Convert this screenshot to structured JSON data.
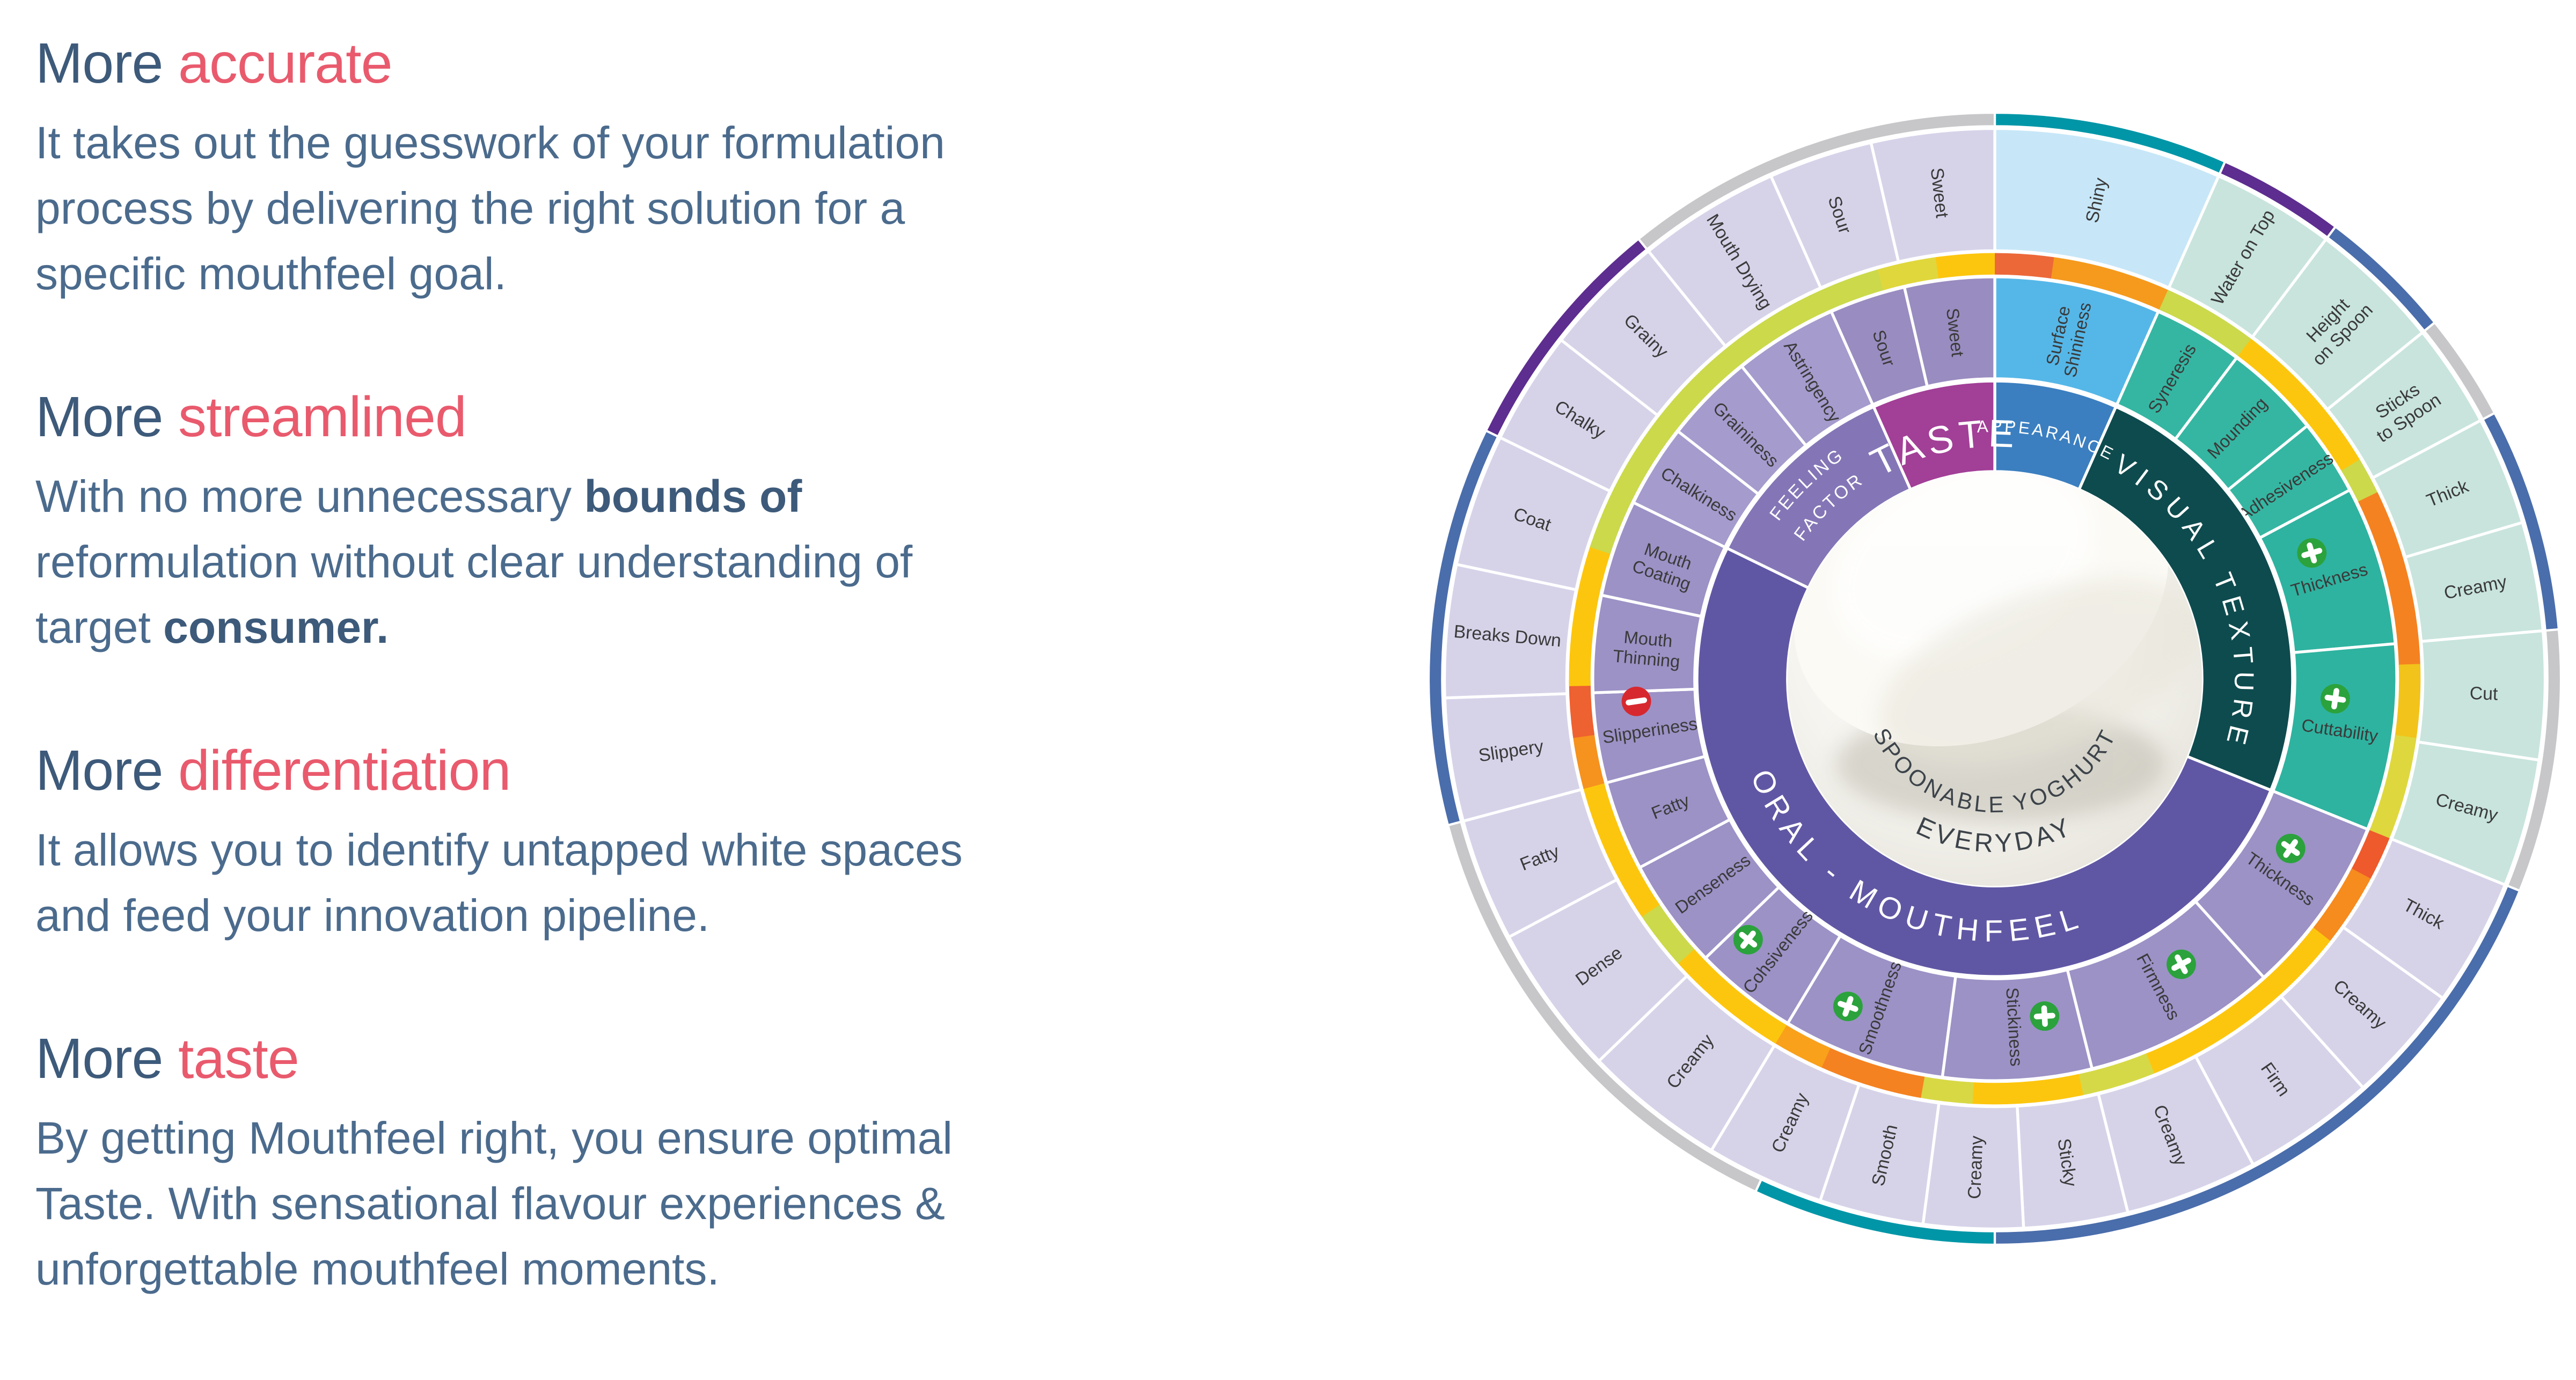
{
  "palette": {
    "heading_dark": "#3d5a7a",
    "heading_accent": "#e95a6d",
    "body_text": "#4b6b8d",
    "edge_teal": "#0096a7",
    "edge_purple": "#5d2d8f",
    "edge_blue": "#4a6dab",
    "edge_gray": "#c7c6c8",
    "accent_lime": "#cbd94b",
    "accent_yellow": "#fdc60e",
    "accent_orange": "#f58220",
    "accent_red_orange": "#ee5a2b"
  },
  "left_panel": {
    "blocks": [
      {
        "title": {
          "prefix": "More",
          "accent": "accurate"
        },
        "lines": [
          [
            {
              "t": "It takes out the guesswork of your formulation"
            }
          ],
          [
            {
              "t": "process by delivering the right solution for a"
            }
          ],
          [
            {
              "t": "specific mouthfeel goal."
            }
          ]
        ]
      },
      {
        "title": {
          "prefix": "More",
          "accent": "streamlined"
        },
        "lines": [
          [
            {
              "t": "With no more unnecessary "
            },
            {
              "t": "bounds of",
              "b": true
            }
          ],
          [
            {
              "t": "reformulation without clear understanding of"
            }
          ],
          [
            {
              "t": "target "
            },
            {
              "t": "consumer.",
              "b": true
            }
          ]
        ]
      },
      {
        "title": {
          "prefix": "More",
          "accent": "differentiation"
        },
        "lines": [
          [
            {
              "t": "It allows you to identify untapped white spaces"
            }
          ],
          [
            {
              "t": "and feed your innovation pipeline."
            }
          ]
        ]
      },
      {
        "title": {
          "prefix": "More",
          "accent": "taste"
        },
        "lines": [
          [
            {
              "t": "By getting Mouthfeel right, you ensure optimal"
            }
          ],
          [
            {
              "t": "Taste. With sensational flavour experiences &"
            }
          ],
          [
            {
              "t": "unforgettable mouthfeel moments."
            }
          ]
        ]
      }
    ]
  },
  "wheel": {
    "center": {
      "line1": "SPOONABLE YOGHURT",
      "line2": "EVERYDAY",
      "text_color": "#3c434a"
    },
    "label_color": "#3a3a3a",
    "icons": {
      "plus": "plus-in-green-circle",
      "minus": "minus-in-red-circle",
      "plus_color": "#2ba23c",
      "minus_color": "#d7282f"
    },
    "categories": [
      {
        "label": "APPEARANCE",
        "start": 0,
        "end": 24,
        "color": "#3b7fc0",
        "r": 218,
        "font": 15,
        "ls": 2
      },
      {
        "label": "VISUAL TEXTURE",
        "start": 24,
        "end": 112,
        "color": "#0e4b4e",
        "r": 212,
        "font": 24,
        "ls": 6
      },
      {
        "label": "ORAL - MOUTHFEEL",
        "start": 112,
        "end": 296,
        "color": "#6057a4",
        "r": 232,
        "font": 27,
        "ls": 6,
        "reverse": true
      },
      {
        "label": "FEELING FACTOR",
        "start": 296,
        "end": 336,
        "color": "#8476b6",
        "two": [
          "FEELING",
          "FACTOR"
        ],
        "r": 236,
        "r2": 208,
        "font": 16,
        "ls": 2
      },
      {
        "label": "TASTE",
        "start": 336,
        "end": 360,
        "color": "#a23f97",
        "r": 205,
        "font": 34,
        "ls": 4
      }
    ],
    "attributes": [
      {
        "label": "Surface Shininess",
        "lines": [
          "Surface",
          "Shininess"
        ],
        "start": 0,
        "end": 24,
        "color": "#55b7e8"
      },
      {
        "label": "Syneresis",
        "start": 24,
        "end": 37,
        "color": "#35b6a2"
      },
      {
        "label": "Mounding",
        "start": 37,
        "end": 51,
        "color": "#35b6a2"
      },
      {
        "label": "Adhesiveness",
        "start": 51,
        "end": 62,
        "color": "#35b6a2"
      },
      {
        "label": "Thickness",
        "start": 62,
        "end": 85,
        "color": "#2eb3a0",
        "icon": "plus"
      },
      {
        "label": "Cuttability",
        "start": 85,
        "end": 112,
        "color": "#2eb3a0",
        "icon": "plus"
      },
      {
        "label": "Thickness",
        "start": 112,
        "end": 138,
        "color": "#9c92c6",
        "icon": "plus"
      },
      {
        "label": "Firmness",
        "start": 138,
        "end": 166,
        "color": "#9c92c6",
        "icon": "plus"
      },
      {
        "label": "Stickiness",
        "start": 166,
        "end": 187.5,
        "color": "#9c92c6",
        "icon": "plus"
      },
      {
        "label": "Smoothness",
        "start": 187.5,
        "end": 211,
        "color": "#9c92c6",
        "icon": "plus"
      },
      {
        "label": "Cohsiveness",
        "start": 211,
        "end": 226,
        "color": "#9c92c6",
        "icon": "plus"
      },
      {
        "label": "Denseness",
        "start": 226,
        "end": 242,
        "color": "#9c92c6"
      },
      {
        "label": "Fatty",
        "start": 242,
        "end": 255,
        "color": "#9c92c6"
      },
      {
        "label": "Slipperiness",
        "start": 255,
        "end": 268,
        "color": "#9c92c6",
        "icon": "minus"
      },
      {
        "label": "Mouth Thinning",
        "lines": [
          "Mouth",
          "Thinning"
        ],
        "start": 268,
        "end": 282,
        "color": "#9c92c6"
      },
      {
        "label": "Mouth Coating",
        "lines": [
          "Mouth",
          "Coating"
        ],
        "start": 282,
        "end": 296,
        "color": "#9c92c6"
      },
      {
        "label": "Chalkiness",
        "start": 296,
        "end": 308,
        "color": "#a59bcd"
      },
      {
        "label": "Graininess",
        "start": 308,
        "end": 321,
        "color": "#a59bcd"
      },
      {
        "label": "Astringency",
        "start": 321,
        "end": 336,
        "color": "#a59bcd"
      },
      {
        "label": "Sour",
        "start": 336,
        "end": 347,
        "color": "#998cc0"
      },
      {
        "label": "Sweet",
        "start": 347,
        "end": 360,
        "color": "#998cc0"
      }
    ],
    "consumer_terms": [
      {
        "label": "Shiny",
        "start": 0,
        "end": 24,
        "color": "#c7e7f8"
      },
      {
        "label": "Water on Top",
        "start": 24,
        "end": 37,
        "color": "#c8e4dd"
      },
      {
        "label": "Height on Spoon",
        "lines": [
          "Height",
          "on Spoon"
        ],
        "start": 37,
        "end": 51,
        "color": "#c8e4dd"
      },
      {
        "label": "Sticks to Spoon",
        "lines": [
          "Sticks",
          "to Spoon"
        ],
        "start": 51,
        "end": 62,
        "color": "#c8e4dd"
      },
      {
        "label": "Thick",
        "start": 62,
        "end": 73.5,
        "color": "#c8e4dd"
      },
      {
        "label": "Creamy",
        "start": 73.5,
        "end": 85,
        "color": "#c8e4dd"
      },
      {
        "label": "Cut",
        "start": 85,
        "end": 98.5,
        "color": "#c8e4dd"
      },
      {
        "label": "Creamy",
        "start": 98.5,
        "end": 112,
        "color": "#c8e4dd"
      },
      {
        "label": "Thick",
        "start": 112,
        "end": 125.5,
        "color": "#d6d3e9"
      },
      {
        "label": "Creamy",
        "start": 125.5,
        "end": 138,
        "color": "#d6d3e9"
      },
      {
        "label": "Firm",
        "start": 138,
        "end": 152,
        "color": "#d6d3e9"
      },
      {
        "label": "Creamy",
        "start": 152,
        "end": 166,
        "color": "#d6d3e9"
      },
      {
        "label": "Sticky",
        "start": 166,
        "end": 177,
        "color": "#d6d3e9"
      },
      {
        "label": "Creamy",
        "start": 177,
        "end": 187.5,
        "color": "#d6d3e9"
      },
      {
        "label": "Smooth",
        "start": 187.5,
        "end": 198.5,
        "color": "#d6d3e9"
      },
      {
        "label": "Creamy",
        "start": 198.5,
        "end": 211,
        "color": "#d6d3e9"
      },
      {
        "label": "Creamy",
        "start": 211,
        "end": 226,
        "color": "#d6d3e9"
      },
      {
        "label": "Dense",
        "start": 226,
        "end": 242,
        "color": "#d6d3e9"
      },
      {
        "label": "Fatty",
        "start": 242,
        "end": 255,
        "color": "#d6d3e9"
      },
      {
        "label": "Slippery",
        "start": 255,
        "end": 268,
        "color": "#d6d3e9"
      },
      {
        "label": "Breaks Down",
        "start": 268,
        "end": 282,
        "color": "#d6d3e9"
      },
      {
        "label": "Coat",
        "start": 282,
        "end": 296,
        "color": "#d6d3e9"
      },
      {
        "label": "Chalky",
        "start": 296,
        "end": 308,
        "color": "#d6d3e9"
      },
      {
        "label": "Grainy",
        "start": 308,
        "end": 321,
        "color": "#d6d3e9"
      },
      {
        "label": "Mouth Drying",
        "start": 321,
        "end": 336,
        "color": "#d6d3e9"
      },
      {
        "label": "Sour",
        "start": 336,
        "end": 347,
        "color": "#d6d3e9"
      },
      {
        "label": "Sweet",
        "start": 347,
        "end": 360,
        "color": "#d6d3e9"
      }
    ],
    "edge_arcs": [
      {
        "start": 0,
        "end": 24,
        "color": "#0096a7"
      },
      {
        "start": 24,
        "end": 37,
        "color": "#5d2d8f"
      },
      {
        "start": 37,
        "end": 51,
        "color": "#4a6dab"
      },
      {
        "start": 51,
        "end": 62,
        "color": "#c7c6c8"
      },
      {
        "start": 62,
        "end": 85,
        "color": "#4a6dab"
      },
      {
        "start": 85,
        "end": 112,
        "color": "#c7c6c8"
      },
      {
        "start": 112,
        "end": 180,
        "color": "#4a6dab"
      },
      {
        "start": 180,
        "end": 205,
        "color": "#0096a7"
      },
      {
        "start": 205,
        "end": 255,
        "color": "#c7c6c8"
      },
      {
        "start": 255,
        "end": 296,
        "color": "#4a6dab"
      },
      {
        "start": 296,
        "end": 321,
        "color": "#5d2d8f"
      },
      {
        "start": 321,
        "end": 360,
        "color": "#c7c6c8"
      }
    ],
    "accent_arcs": [
      {
        "start": 0,
        "end": 8,
        "color": "#ec6839"
      },
      {
        "start": 8,
        "end": 24,
        "color": "#f59a1d"
      },
      {
        "start": 24,
        "end": 37,
        "color": "#cbd94b"
      },
      {
        "start": 37,
        "end": 59,
        "color": "#fdc60e"
      },
      {
        "start": 59,
        "end": 64,
        "color": "#ccd94a"
      },
      {
        "start": 64,
        "end": 88,
        "color": "#f58220"
      },
      {
        "start": 88,
        "end": 98,
        "color": "#f2c31a"
      },
      {
        "start": 98,
        "end": 112,
        "color": "#ded83e"
      },
      {
        "start": 112,
        "end": 118,
        "color": "#ee5a2b"
      },
      {
        "start": 118,
        "end": 128,
        "color": "#f68b1e"
      },
      {
        "start": 128,
        "end": 158,
        "color": "#fdc60e"
      },
      {
        "start": 158,
        "end": 168,
        "color": "#d6d947"
      },
      {
        "start": 168,
        "end": 183,
        "color": "#fdc60e"
      },
      {
        "start": 183,
        "end": 190,
        "color": "#d8d845"
      },
      {
        "start": 190,
        "end": 204,
        "color": "#f58220"
      },
      {
        "start": 204,
        "end": 211,
        "color": "#f9a11b"
      },
      {
        "start": 211,
        "end": 228,
        "color": "#fdc60e"
      },
      {
        "start": 228,
        "end": 236,
        "color": "#ccd94a"
      },
      {
        "start": 236,
        "end": 255,
        "color": "#fdc60e"
      },
      {
        "start": 255,
        "end": 262,
        "color": "#f6921e"
      },
      {
        "start": 262,
        "end": 269,
        "color": "#ee6130"
      },
      {
        "start": 269,
        "end": 288,
        "color": "#fdc60e"
      },
      {
        "start": 288,
        "end": 344,
        "color": "#cbd94b"
      },
      {
        "start": 344,
        "end": 352,
        "color": "#e0d73c"
      },
      {
        "start": 352,
        "end": 360,
        "color": "#fdc60e"
      }
    ]
  }
}
